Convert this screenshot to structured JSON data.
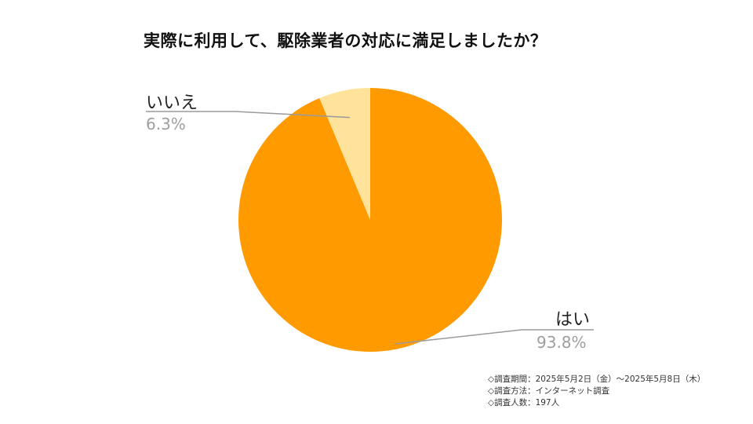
{
  "title": "実際に利用して、駆除業者の対応に満足しましたか？",
  "chart_data": {
    "type": "pie",
    "title": "実際に利用して、駆除業者の対応に満足しましたか？",
    "categories": [
      "はい",
      "いいえ"
    ],
    "values": [
      93.8,
      6.3
    ],
    "value_labels": [
      "93.8%",
      "6.3%"
    ],
    "colors": [
      "#ff9b00",
      "#ffe39a"
    ],
    "legend": "none"
  },
  "notes": [
    "◇調査期間：2025年5月2日（金）～2025年5月8日（木）",
    "◇調査方法：インターネット調査",
    "◇調査人数：197人"
  ]
}
